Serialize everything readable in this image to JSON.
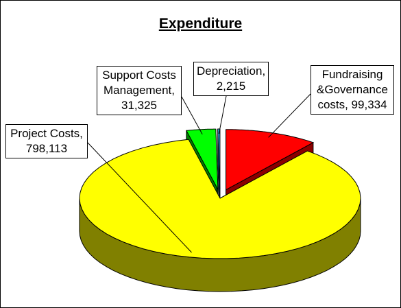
{
  "chart_data": {
    "type": "pie",
    "title": "Expenditure",
    "three_d": true,
    "legend": "none",
    "slices": [
      {
        "name": "Fundraising &Governance costs",
        "value": 99334,
        "color": "#ff0000",
        "side_color": "#8b0000",
        "exploded": true,
        "label_lines": [
          "Fundraising",
          "&Governance",
          "costs, 99,334"
        ]
      },
      {
        "name": "Project Costs",
        "value": 798113,
        "color": "#ffff00",
        "side_color": "#808000",
        "exploded": false,
        "label_lines": [
          "Project Costs,",
          "798,113"
        ]
      },
      {
        "name": "Support Costs Management",
        "value": 31325,
        "color": "#00ff00",
        "side_color": "#008000",
        "exploded": true,
        "label_lines": [
          "Support Costs",
          "Management,",
          "31,325"
        ]
      },
      {
        "name": "Depreciation",
        "value": 2215,
        "color": "#33ccff",
        "side_color": "#006699",
        "exploded": true,
        "label_lines": [
          "Depreciation,",
          "2,215"
        ]
      }
    ]
  }
}
